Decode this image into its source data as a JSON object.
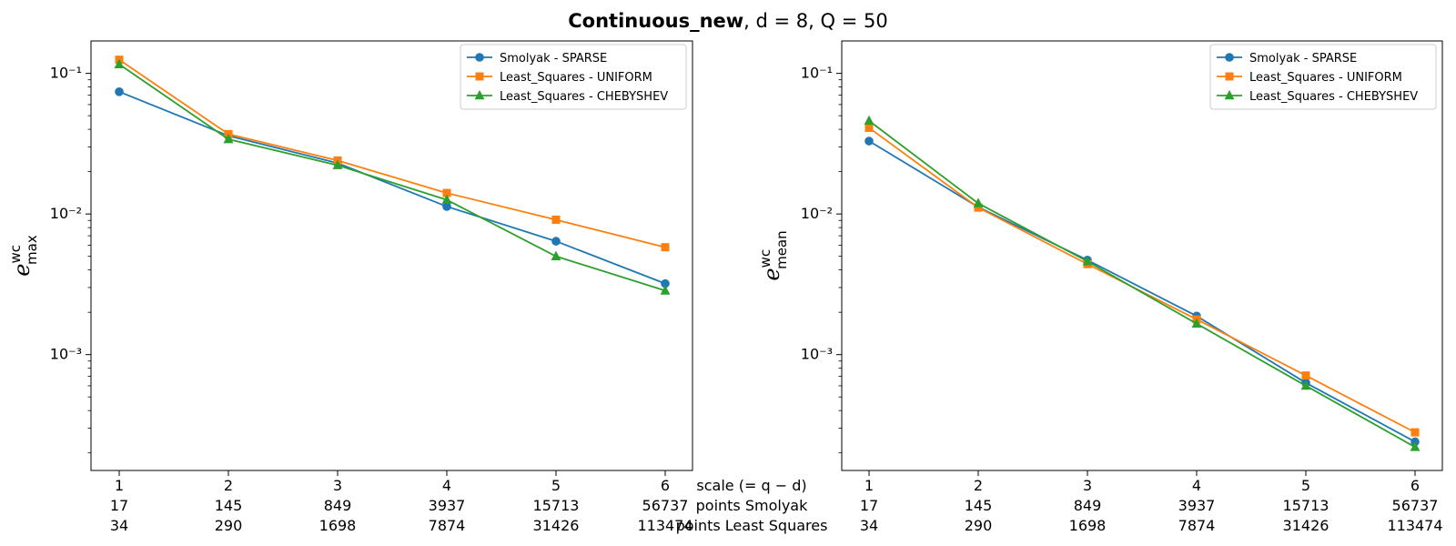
{
  "title": {
    "bold": "Continuous_new",
    "rest": ", d = 8, Q = 50"
  },
  "x_axis": {
    "row_labels": [
      "scale (= q − d)",
      "points Smolyak",
      "points Least Squares"
    ],
    "scale": [
      "1",
      "2",
      "3",
      "4",
      "5",
      "6"
    ],
    "points_smolyak": [
      "17",
      "145",
      "849",
      "3937",
      "15713",
      "56737"
    ],
    "points_least_squares": [
      "34",
      "290",
      "1698",
      "7874",
      "31426",
      "113474"
    ]
  },
  "colors": {
    "Smolyak - SPARSE": "#1f77b4",
    "Least_Squares - UNIFORM": "#ff7f0e",
    "Least_Squares - CHEBYSHEV": "#2ca02c"
  },
  "chart_data": [
    {
      "type": "line",
      "ylabel": "e_max^wc",
      "yscale": "log",
      "ylim": [
        0.00015,
        0.17
      ],
      "yticks": [
        "10⁻³",
        "10⁻²",
        "10⁻¹"
      ],
      "legend_position": "top-right",
      "x": [
        1,
        2,
        3,
        4,
        5,
        6
      ],
      "series": [
        {
          "name": "Smolyak - SPARSE",
          "marker": "circle",
          "values": [
            0.074,
            0.036,
            0.023,
            0.0113,
            0.0064,
            0.0032
          ]
        },
        {
          "name": "Least_Squares - UNIFORM",
          "marker": "square",
          "values": [
            0.125,
            0.037,
            0.024,
            0.0141,
            0.0091,
            0.0058
          ]
        },
        {
          "name": "Least_Squares - CHEBYSHEV",
          "marker": "triangle",
          "values": [
            0.116,
            0.034,
            0.0222,
            0.0126,
            0.005,
            0.00285
          ]
        }
      ]
    },
    {
      "type": "line",
      "ylabel": "e_mean^wc",
      "yscale": "log",
      "ylim": [
        0.00015,
        0.17
      ],
      "yticks": [
        "10⁻³",
        "10⁻²",
        "10⁻¹"
      ],
      "legend_position": "top-right",
      "x": [
        1,
        2,
        3,
        4,
        5,
        6
      ],
      "series": [
        {
          "name": "Smolyak - SPARSE",
          "marker": "circle",
          "values": [
            0.033,
            0.0112,
            0.0047,
            0.00188,
            0.00063,
            0.00024
          ]
        },
        {
          "name": "Least_Squares - UNIFORM",
          "marker": "square",
          "values": [
            0.041,
            0.0111,
            0.0044,
            0.00178,
            0.00071,
            0.00028
          ]
        },
        {
          "name": "Least_Squares - CHEBYSHEV",
          "marker": "triangle",
          "values": [
            0.046,
            0.0119,
            0.0046,
            0.00166,
            0.0006,
            0.00022
          ]
        }
      ]
    }
  ]
}
